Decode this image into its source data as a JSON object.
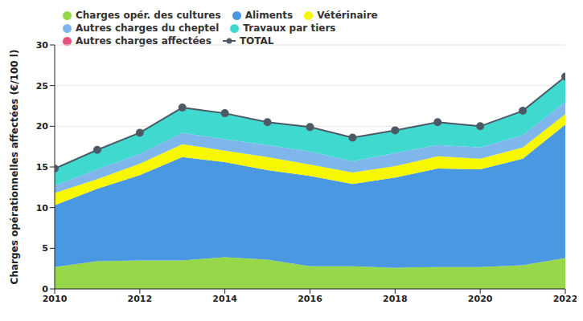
{
  "chart_data": {
    "type": "area",
    "stacked": true,
    "grid": true,
    "legend": "top",
    "y_label": "Charges opérationnelles affectées (€/100 l)",
    "x": [
      2010,
      2011,
      2012,
      2013,
      2014,
      2015,
      2016,
      2017,
      2018,
      2019,
      2020,
      2021,
      2022
    ],
    "xlim": [
      2010,
      2022
    ],
    "xticks": [
      2010,
      2012,
      2014,
      2016,
      2018,
      2020,
      2022
    ],
    "ylim": [
      0,
      30
    ],
    "yticks": [
      0,
      5,
      10,
      15,
      20,
      25,
      30
    ],
    "series": [
      {
        "name": "Charges opér. des cultures",
        "color": "#96d84a",
        "values": [
          2.7,
          3.4,
          3.5,
          3.5,
          3.9,
          3.6,
          2.8,
          2.8,
          2.6,
          2.7,
          2.7,
          2.9,
          3.8
        ]
      },
      {
        "name": "Aliments",
        "color": "#4a97e2",
        "values": [
          7.6,
          8.9,
          10.5,
          12.7,
          11.7,
          11.0,
          11.1,
          10.1,
          11.1,
          12.1,
          12.0,
          13.1,
          16.4
        ]
      },
      {
        "name": "Vétérinaire",
        "color": "#f7f700",
        "values": [
          1.5,
          1.2,
          1.4,
          1.6,
          1.4,
          1.6,
          1.4,
          1.4,
          1.4,
          1.5,
          1.3,
          1.4,
          1.3
        ]
      },
      {
        "name": "Autres charges du cheptel",
        "color": "#7fb6ec",
        "values": [
          0.9,
          1.2,
          1.2,
          1.4,
          1.4,
          1.5,
          1.6,
          1.4,
          1.6,
          1.4,
          1.4,
          1.5,
          1.5
        ]
      },
      {
        "name": "Travaux par tiers",
        "color": "#3fd9cf",
        "values": [
          2.1,
          2.4,
          2.6,
          3.1,
          3.2,
          2.8,
          3.0,
          2.9,
          2.8,
          2.8,
          2.6,
          3.0,
          3.1
        ]
      },
      {
        "name": "Autres charges affectées",
        "color": "#e8507f",
        "values": [
          0,
          0,
          0,
          0,
          0,
          0,
          0,
          0,
          0,
          0,
          0,
          0,
          0
        ]
      },
      {
        "name": "TOTAL",
        "type": "line",
        "marker": "circle",
        "color": "#4d5a66",
        "values": [
          14.8,
          17.1,
          19.2,
          22.3,
          21.6,
          20.5,
          19.9,
          18.6,
          19.5,
          20.5,
          20.0,
          21.9,
          26.1
        ]
      }
    ]
  }
}
